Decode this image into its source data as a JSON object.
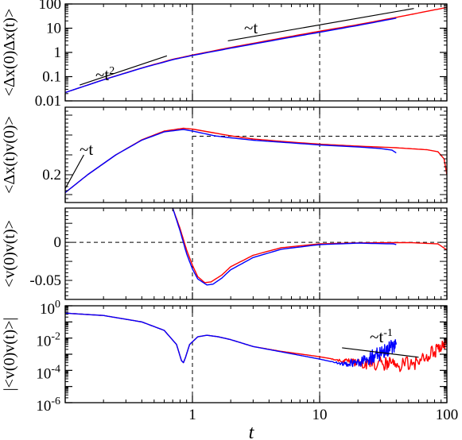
{
  "colors": {
    "red": "#ff0000",
    "blue": "#0000ff",
    "ref": "#000000"
  },
  "xaxis": {
    "label": "t",
    "scale": "log",
    "range": [
      0.1,
      100
    ],
    "ticks": [
      {
        "value": 1,
        "label": "1"
      },
      {
        "value": 10,
        "label": "10"
      },
      {
        "value": 100,
        "label": "100"
      }
    ]
  },
  "chart_data": [
    {
      "type": "line",
      "ylabel": "<Δx(0)Δx(t)>",
      "xscale": "log",
      "yscale": "log",
      "xlim": [
        0.1,
        100
      ],
      "ylim": [
        0.01,
        100
      ],
      "yticks": [
        {
          "value": 100,
          "label": "100"
        },
        {
          "value": 10,
          "label": "10"
        },
        {
          "value": 1,
          "label": "1"
        },
        {
          "value": 0.1,
          "label": "0.1"
        },
        {
          "value": 0.01,
          "label": "0.01"
        }
      ],
      "series": [
        {
          "color": "#ff0000",
          "x": [
            0.1,
            0.2,
            0.4,
            0.7,
            1,
            2,
            5,
            10,
            20,
            40,
            70,
            100
          ],
          "y": [
            0.022,
            0.075,
            0.23,
            0.52,
            0.78,
            1.6,
            3.9,
            7.5,
            14,
            28,
            50,
            72
          ]
        },
        {
          "color": "#0000ff",
          "x": [
            0.1,
            0.2,
            0.4,
            0.7,
            1,
            2,
            5,
            10,
            20,
            40
          ],
          "y": [
            0.022,
            0.074,
            0.225,
            0.5,
            0.75,
            1.5,
            3.6,
            6.8,
            13,
            26
          ]
        }
      ],
      "reference_lines": [
        {
          "label": "~t²",
          "label_base": "~t",
          "label_exp": "2",
          "x": [
            0.13,
            0.63
          ],
          "y": [
            0.045,
            0.72
          ]
        },
        {
          "label": "~t",
          "label_base": "~t",
          "x": [
            1.9,
            55
          ],
          "y": [
            3,
            65
          ]
        }
      ],
      "vlines": [
        1,
        10
      ]
    },
    {
      "type": "line",
      "ylabel": "<Δx(t)v(0)>",
      "xscale": "log",
      "yscale": "linear",
      "xlim": [
        0.1,
        100
      ],
      "ylim": [
        0.13,
        0.37
      ],
      "yticks": [
        {
          "value": 0.2,
          "label": "0.2"
        }
      ],
      "series": [
        {
          "color": "#ff0000",
          "x": [
            0.1,
            0.15,
            0.25,
            0.4,
            0.6,
            0.85,
            1,
            1.5,
            2,
            3,
            5,
            10,
            20,
            40,
            70,
            85,
            95,
            100
          ],
          "y": [
            0.155,
            0.2,
            0.25,
            0.288,
            0.31,
            0.317,
            0.315,
            0.305,
            0.298,
            0.29,
            0.284,
            0.277,
            0.272,
            0.268,
            0.263,
            0.258,
            0.24,
            0.2
          ]
        },
        {
          "color": "#0000ff",
          "x": [
            0.1,
            0.15,
            0.25,
            0.4,
            0.6,
            0.85,
            1,
            1.5,
            2,
            3,
            5,
            10,
            20,
            30,
            37,
            40
          ],
          "y": [
            0.155,
            0.2,
            0.25,
            0.287,
            0.308,
            0.314,
            0.31,
            0.298,
            0.293,
            0.287,
            0.282,
            0.275,
            0.27,
            0.266,
            0.262,
            0.255
          ]
        }
      ],
      "reference_lines": [
        {
          "label": "~t",
          "label_base": "~t",
          "x": [
            0.1,
            0.14
          ],
          "y": [
            0.165,
            0.25
          ]
        }
      ],
      "hline": {
        "y": 0.297,
        "x_from": 1
      },
      "vlines": [
        1,
        10
      ]
    },
    {
      "type": "line",
      "ylabel": "<v(0)v(t)>",
      "xscale": "log",
      "yscale": "linear",
      "xlim": [
        0.1,
        100
      ],
      "ylim": [
        -0.075,
        0.045
      ],
      "yticks": [
        {
          "value": 0,
          "label": "0"
        },
        {
          "value": -0.05,
          "label": "-0.05"
        }
      ],
      "series": [
        {
          "color": "#ff0000",
          "x": [
            0.7,
            0.8,
            0.9,
            1,
            1.1,
            1.25,
            1.4,
            1.7,
            2,
            3,
            5,
            10,
            20,
            50,
            85,
            100
          ],
          "y": [
            0.045,
            0.018,
            -0.01,
            -0.03,
            -0.045,
            -0.053,
            -0.052,
            -0.043,
            -0.032,
            -0.017,
            -0.007,
            -0.002,
            -0.0007,
            -0.0003,
            -0.002,
            -0.01
          ]
        },
        {
          "color": "#0000ff",
          "x": [
            0.7,
            0.8,
            0.9,
            1,
            1.1,
            1.3,
            1.45,
            1.7,
            2,
            3,
            5,
            10,
            20,
            38,
            40
          ],
          "y": [
            0.045,
            0.015,
            -0.015,
            -0.035,
            -0.048,
            -0.056,
            -0.055,
            -0.047,
            -0.036,
            -0.02,
            -0.009,
            -0.003,
            -0.001,
            -0.002,
            -0.003
          ]
        }
      ],
      "hline": {
        "y": 0,
        "x_from": 0.1
      },
      "vlines": [
        1,
        10
      ]
    },
    {
      "type": "line",
      "ylabel": "|<v(0)v(t)>|",
      "xscale": "log",
      "yscale": "log",
      "xlim": [
        0.1,
        100
      ],
      "ylim": [
        1e-06,
        1
      ],
      "yticks": [
        {
          "value": 1,
          "label_base": "10",
          "label_exp": "0"
        },
        {
          "value": 0.01,
          "label_base": "10",
          "label_exp": "-2"
        },
        {
          "value": 0.0001,
          "label_base": "10",
          "label_exp": "-4"
        },
        {
          "value": 1e-06,
          "label_base": "10",
          "label_exp": "-6"
        }
      ],
      "series": [
        {
          "color": "#ff0000",
          "x": [
            0.1,
            0.2,
            0.4,
            0.6,
            0.75,
            0.82,
            0.85,
            0.88,
            0.95,
            1.1,
            1.3,
            1.6,
            2,
            3,
            5,
            8,
            10,
            15,
            20,
            30,
            40,
            60,
            80,
            100
          ],
          "y": [
            0.35,
            0.25,
            0.1,
            0.03,
            0.004,
            0.0004,
            0.0003,
            0.0006,
            0.004,
            0.012,
            0.015,
            0.012,
            0.008,
            0.003,
            0.0015,
            0.0009,
            0.0007,
            0.0004,
            0.0003,
            0.00025,
            0.00022,
            0.0003,
            0.0015,
            0.008
          ]
        },
        {
          "color": "#0000ff",
          "x": [
            0.1,
            0.2,
            0.4,
            0.6,
            0.75,
            0.82,
            0.85,
            0.88,
            0.95,
            1.1,
            1.3,
            1.6,
            2,
            3,
            5,
            8,
            10,
            15,
            20,
            25,
            30,
            35,
            40
          ],
          "y": [
            0.35,
            0.25,
            0.1,
            0.03,
            0.004,
            0.0004,
            0.0003,
            0.0006,
            0.004,
            0.012,
            0.015,
            0.012,
            0.008,
            0.003,
            0.0014,
            0.0007,
            0.0005,
            0.00025,
            0.0003,
            0.0006,
            0.0011,
            0.0022,
            0.004
          ]
        }
      ],
      "reference_lines": [
        {
          "label": "~t⁻¹",
          "label_base": "~t",
          "label_exp": "-1",
          "x": [
            15,
            60
          ],
          "y": [
            0.0025,
            0.00065
          ]
        }
      ],
      "vlines": [
        1,
        10
      ]
    }
  ]
}
